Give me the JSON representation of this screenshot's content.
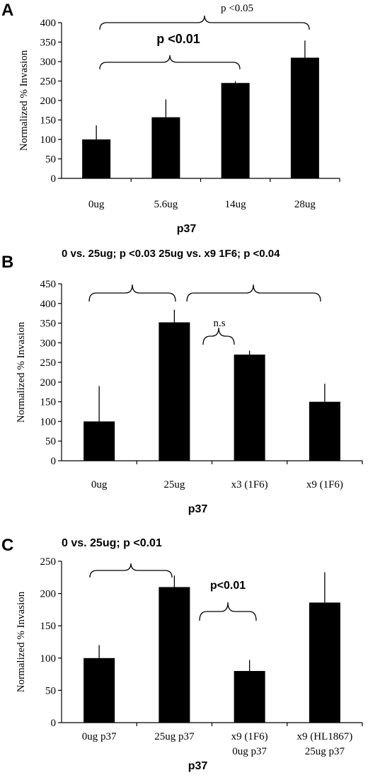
{
  "chart_data": [
    {
      "panel": "A",
      "type": "bar",
      "categories": [
        "0ug",
        "5.6ug",
        "14ug",
        "28ug"
      ],
      "values": [
        100,
        157,
        245,
        310
      ],
      "errors": [
        36,
        46,
        4,
        44
      ],
      "ylabel": "Normalized % Invasion",
      "xlabel": "p37",
      "ylim": [
        0,
        400
      ],
      "yticks": [
        "0",
        "50",
        "100",
        "150",
        "200",
        "250",
        "300",
        "350",
        "400"
      ],
      "annotations": [
        {
          "text": "p <0.05",
          "bold": false
        },
        {
          "text": "p <0.01",
          "bold": true
        }
      ]
    },
    {
      "panel": "B",
      "type": "bar",
      "categories": [
        "0ug",
        "25ug",
        "x3 (1F6)",
        "x9 (1F6)"
      ],
      "values": [
        100,
        352,
        270,
        150
      ],
      "errors": [
        90,
        32,
        10,
        46
      ],
      "ylabel": "Normalized % Invasion",
      "xlabel": "p37",
      "ylim": [
        0,
        450
      ],
      "yticks": [
        "0",
        "50",
        "100",
        "150",
        "200",
        "250",
        "300",
        "350",
        "400",
        "450"
      ],
      "annotations": [
        {
          "text": "0 vs. 25ug; p <0.03  25ug  vs. x9 1F6; p <0.04",
          "bold": true
        },
        {
          "text": "n.s",
          "bold": false
        }
      ]
    },
    {
      "panel": "C",
      "type": "bar",
      "categories": [
        "0ug p37",
        "25ug p37",
        "x9 (1F6)|0ug p37",
        "x9 (HL1867)|25ug p37"
      ],
      "values": [
        100,
        210,
        80,
        186
      ],
      "errors": [
        20,
        18,
        17,
        47
      ],
      "ylabel": "Normalized % Invasion",
      "xlabel": "p37",
      "ylim": [
        0,
        250
      ],
      "yticks": [
        "0",
        "50",
        "100",
        "150",
        "200",
        "250"
      ],
      "annotations": [
        {
          "text": "0 vs. 25ug; p <0.01",
          "bold": true
        },
        {
          "text": "p<0.01",
          "bold": true
        }
      ]
    }
  ]
}
